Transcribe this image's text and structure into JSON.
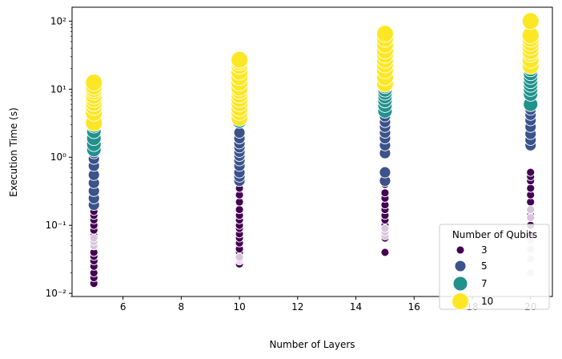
{
  "chart_data": {
    "type": "scatter",
    "xlabel": "Number of Layers",
    "ylabel": "Execution Time (s)",
    "xlim": [
      4.25,
      20.75
    ],
    "ylim": [
      0.009,
      160
    ],
    "yscale": "log",
    "grid": false,
    "x_ticks": [
      6,
      8,
      10,
      12,
      14,
      16,
      18,
      20
    ],
    "x_tick_labels": [
      "6",
      "8",
      "10",
      "12",
      "14",
      "16",
      "18",
      "20"
    ],
    "y_ticks": [
      0.01,
      0.1,
      1,
      10,
      100
    ],
    "y_tick_labels": [
      "10⁻²",
      "10⁻¹",
      "10⁰",
      "10¹",
      "10²"
    ],
    "legend": {
      "title": "Number of Qubits",
      "placement": "lower-right",
      "entries": [
        {
          "label": "3",
          "color": "#440154"
        },
        {
          "label": "5",
          "color": "#3b528b"
        },
        {
          "label": "7",
          "color": "#21918c"
        },
        {
          "label": "10",
          "color": "#fde725"
        }
      ]
    },
    "faded_color": "#d8c4dc",
    "series": [
      {
        "name": "3",
        "color": "#440154",
        "points": [
          [
            5,
            0.014
          ],
          [
            5,
            0.017
          ],
          [
            5,
            0.02
          ],
          [
            5,
            0.025
          ],
          [
            5,
            0.03
          ],
          [
            5,
            0.035
          ],
          [
            5,
            0.04
          ],
          [
            5,
            0.05
          ],
          [
            5,
            0.06
          ],
          [
            5,
            0.07
          ],
          [
            5,
            0.085
          ],
          [
            5,
            0.1
          ],
          [
            5,
            0.12
          ],
          [
            5,
            0.14
          ],
          [
            5,
            0.16
          ],
          [
            10,
            0.027
          ],
          [
            10,
            0.03
          ],
          [
            10,
            0.035
          ],
          [
            10,
            0.04
          ],
          [
            10,
            0.045
          ],
          [
            10,
            0.055
          ],
          [
            10,
            0.065
          ],
          [
            10,
            0.075
          ],
          [
            10,
            0.09
          ],
          [
            10,
            0.1
          ],
          [
            10,
            0.12
          ],
          [
            10,
            0.14
          ],
          [
            10,
            0.17
          ],
          [
            10,
            0.22
          ],
          [
            10,
            0.28
          ],
          [
            10,
            0.35
          ],
          [
            15,
            0.04
          ],
          [
            15,
            0.065
          ],
          [
            15,
            0.075
          ],
          [
            15,
            0.085
          ],
          [
            15,
            0.1
          ],
          [
            15,
            0.12
          ],
          [
            15,
            0.14
          ],
          [
            15,
            0.17
          ],
          [
            15,
            0.2
          ],
          [
            15,
            0.25
          ],
          [
            15,
            0.3
          ],
          [
            15,
            0.4
          ],
          [
            15,
            0.48
          ],
          [
            15,
            0.55
          ],
          [
            20,
            0.07
          ],
          [
            20,
            0.1
          ],
          [
            20,
            0.14
          ],
          [
            20,
            0.17
          ],
          [
            20,
            0.22
          ],
          [
            20,
            0.28
          ],
          [
            20,
            0.35
          ],
          [
            20,
            0.45
          ],
          [
            20,
            0.52
          ],
          [
            20,
            0.6
          ]
        ]
      },
      {
        "name": "5",
        "color": "#3b528b",
        "points": [
          [
            5,
            0.2
          ],
          [
            5,
            0.25
          ],
          [
            5,
            0.32
          ],
          [
            5,
            0.42
          ],
          [
            5,
            0.55
          ],
          [
            5,
            0.75
          ],
          [
            5,
            0.95
          ],
          [
            5,
            1.15
          ],
          [
            10,
            0.45
          ],
          [
            10,
            0.52
          ],
          [
            10,
            0.6
          ],
          [
            10,
            0.75
          ],
          [
            10,
            0.9
          ],
          [
            10,
            1.05
          ],
          [
            10,
            1.2
          ],
          [
            10,
            1.4
          ],
          [
            10,
            1.6
          ],
          [
            10,
            1.9
          ],
          [
            10,
            2.3
          ],
          [
            15,
            0.45
          ],
          [
            15,
            0.6
          ],
          [
            15,
            1.15
          ],
          [
            15,
            1.5
          ],
          [
            15,
            1.9
          ],
          [
            15,
            2.3
          ],
          [
            15,
            2.8
          ],
          [
            15,
            3.3
          ],
          [
            15,
            4
          ],
          [
            15,
            4.8
          ],
          [
            20,
            1.5
          ],
          [
            20,
            1.8
          ],
          [
            20,
            2.2
          ],
          [
            20,
            2.8
          ],
          [
            20,
            3.5
          ],
          [
            20,
            4.2
          ],
          [
            20,
            5
          ]
        ]
      },
      {
        "name": "7",
        "color": "#21918c",
        "points": [
          [
            5,
            1.3
          ],
          [
            5,
            1.55
          ],
          [
            5,
            1.9
          ],
          [
            5,
            2.4
          ],
          [
            5,
            2.9
          ],
          [
            5,
            3.6
          ],
          [
            5,
            4.2
          ],
          [
            10,
            3.4
          ],
          [
            10,
            4.8
          ],
          [
            10,
            5.6
          ],
          [
            10,
            6.5
          ],
          [
            10,
            7.5
          ],
          [
            15,
            4.8
          ],
          [
            15,
            5.8
          ],
          [
            15,
            6.8
          ],
          [
            15,
            7.8
          ],
          [
            15,
            8.8
          ],
          [
            15,
            9.8
          ],
          [
            15,
            11
          ],
          [
            15,
            12.2
          ],
          [
            20,
            6
          ],
          [
            20,
            8.5
          ],
          [
            20,
            10
          ],
          [
            20,
            11.5
          ],
          [
            20,
            13
          ],
          [
            20,
            15
          ],
          [
            20,
            17
          ],
          [
            20,
            19.5
          ],
          [
            20,
            22
          ]
        ]
      },
      {
        "name": "10",
        "color": "#fde725",
        "points": [
          [
            5,
            3.2
          ],
          [
            5,
            4.5
          ],
          [
            5,
            5.5
          ],
          [
            5,
            6.3
          ],
          [
            5,
            7.2
          ],
          [
            5,
            8
          ],
          [
            5,
            9.2
          ],
          [
            5,
            10
          ],
          [
            5,
            11
          ],
          [
            5,
            12.5
          ],
          [
            10,
            3.8
          ],
          [
            10,
            4.6
          ],
          [
            10,
            5.3
          ],
          [
            10,
            6.2
          ],
          [
            10,
            7.2
          ],
          [
            10,
            8.3
          ],
          [
            10,
            9.5
          ],
          [
            10,
            10.5
          ],
          [
            10,
            12.5
          ],
          [
            10,
            15
          ],
          [
            10,
            18
          ],
          [
            10,
            22
          ],
          [
            10,
            25
          ],
          [
            10,
            27
          ],
          [
            15,
            12
          ],
          [
            15,
            15
          ],
          [
            15,
            19
          ],
          [
            15,
            23
          ],
          [
            15,
            27
          ],
          [
            15,
            32
          ],
          [
            15,
            37
          ],
          [
            15,
            45
          ],
          [
            15,
            55
          ],
          [
            15,
            65
          ],
          [
            20,
            22
          ],
          [
            20,
            27
          ],
          [
            20,
            33
          ],
          [
            20,
            36
          ],
          [
            20,
            42
          ],
          [
            20,
            48
          ],
          [
            20,
            55
          ],
          [
            20,
            62
          ],
          [
            20,
            100
          ]
        ]
      },
      {
        "name": "",
        "color": "#d8c4dc",
        "faded": true,
        "points": [
          [
            5,
            0.05
          ],
          [
            5,
            0.058
          ],
          [
            5,
            0.065
          ],
          [
            10,
            0.03
          ],
          [
            10,
            0.032
          ],
          [
            10,
            0.034
          ],
          [
            15,
            0.07
          ],
          [
            15,
            0.08
          ],
          [
            15,
            0.09
          ],
          [
            20,
            0.02
          ],
          [
            20,
            0.032
          ],
          [
            20,
            0.045
          ],
          [
            20,
            0.06
          ],
          [
            20,
            0.13
          ],
          [
            20,
            0.17
          ]
        ]
      }
    ]
  }
}
